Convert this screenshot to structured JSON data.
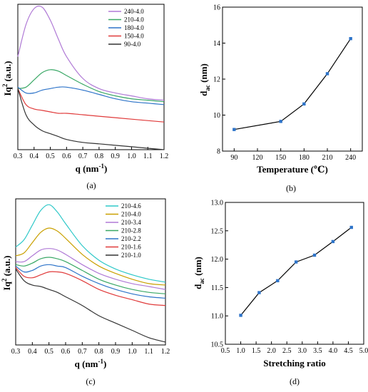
{
  "captions": [
    "(a)",
    "(b)",
    "(c)",
    "(d)"
  ],
  "chart_data": [
    {
      "panel": "a",
      "type": "line",
      "xlabel": "q (nm⁻¹)",
      "ylabel": "Iq² (a.u.)",
      "xlim": [
        0.3,
        1.2
      ],
      "xticks": [
        "0.3",
        "0.4",
        "0.5",
        "0.6",
        "0.7",
        "0.8",
        "0.9",
        "1.0",
        "1.1",
        "1.2"
      ],
      "ylim": [
        0,
        1
      ],
      "legend_position": "top-right",
      "x": [
        0.3,
        0.35,
        0.4,
        0.45,
        0.5,
        0.55,
        0.6,
        0.7,
        0.8,
        0.9,
        1.0,
        1.1,
        1.2
      ],
      "series": [
        {
          "name": "240-4.0",
          "color": "#b07ad6",
          "values": [
            0.64,
            0.86,
            0.97,
            0.98,
            0.89,
            0.76,
            0.64,
            0.49,
            0.42,
            0.39,
            0.37,
            0.35,
            0.34
          ]
        },
        {
          "name": "210-4.0",
          "color": "#3aa866",
          "values": [
            0.42,
            0.43,
            0.48,
            0.53,
            0.55,
            0.54,
            0.51,
            0.45,
            0.4,
            0.37,
            0.35,
            0.34,
            0.33
          ]
        },
        {
          "name": "180-4.0",
          "color": "#2e74c9",
          "values": [
            0.43,
            0.39,
            0.39,
            0.41,
            0.42,
            0.43,
            0.43,
            0.41,
            0.38,
            0.35,
            0.33,
            0.32,
            0.31
          ]
        },
        {
          "name": "150-4.0",
          "color": "#e03a3a",
          "values": [
            0.42,
            0.31,
            0.28,
            0.27,
            0.26,
            0.25,
            0.25,
            0.24,
            0.23,
            0.22,
            0.21,
            0.2,
            0.19
          ]
        },
        {
          "name": "90-4.0",
          "color": "#333333",
          "values": [
            0.42,
            0.24,
            0.17,
            0.13,
            0.11,
            0.09,
            0.07,
            0.05,
            0.04,
            0.03,
            0.02,
            0.01,
            0.0
          ]
        }
      ]
    },
    {
      "panel": "b",
      "type": "line",
      "xlabel": "Temperature (℃)",
      "ylabel": "d_ac (nm)",
      "xlim": [
        75,
        255
      ],
      "ylim": [
        8,
        16
      ],
      "xticks": [
        90,
        120,
        150,
        180,
        210,
        240
      ],
      "yticks": [
        8,
        10,
        12,
        14,
        16
      ],
      "x": [
        90,
        150,
        180,
        210,
        240
      ],
      "values": [
        9.2,
        9.65,
        10.62,
        12.3,
        14.25
      ]
    },
    {
      "panel": "c",
      "type": "line",
      "xlabel": "q (nm⁻¹)",
      "ylabel": "Iq² (a.u.)",
      "xlim": [
        0.3,
        1.2
      ],
      "xticks": [
        "0.3",
        "0.4",
        "0.5",
        "0.6",
        "0.7",
        "0.8",
        "0.9",
        "1.0",
        "1.1",
        "1.2"
      ],
      "ylim": [
        0,
        1
      ],
      "legend_position": "top-right",
      "x": [
        0.3,
        0.35,
        0.4,
        0.45,
        0.5,
        0.55,
        0.6,
        0.7,
        0.8,
        0.9,
        1.0,
        1.1,
        1.2
      ],
      "series": [
        {
          "name": "210-4.6",
          "color": "#2ec8c8",
          "values": [
            0.67,
            0.72,
            0.82,
            0.92,
            0.96,
            0.91,
            0.83,
            0.68,
            0.58,
            0.52,
            0.48,
            0.45,
            0.43
          ]
        },
        {
          "name": "210-4.0",
          "color": "#c9a000",
          "values": [
            0.61,
            0.63,
            0.7,
            0.77,
            0.8,
            0.78,
            0.73,
            0.62,
            0.54,
            0.49,
            0.45,
            0.42,
            0.41
          ]
        },
        {
          "name": "210-3.4",
          "color": "#b07ad6",
          "values": [
            0.57,
            0.57,
            0.61,
            0.65,
            0.66,
            0.65,
            0.62,
            0.55,
            0.49,
            0.45,
            0.42,
            0.4,
            0.38
          ]
        },
        {
          "name": "210-2.8",
          "color": "#3aa866",
          "values": [
            0.55,
            0.54,
            0.56,
            0.59,
            0.6,
            0.59,
            0.57,
            0.51,
            0.45,
            0.41,
            0.38,
            0.36,
            0.35
          ]
        },
        {
          "name": "210-2.2",
          "color": "#2e74c9",
          "values": [
            0.54,
            0.5,
            0.51,
            0.54,
            0.55,
            0.54,
            0.53,
            0.47,
            0.42,
            0.38,
            0.35,
            0.33,
            0.32
          ]
        },
        {
          "name": "210-1.6",
          "color": "#e03a3a",
          "values": [
            0.53,
            0.47,
            0.46,
            0.48,
            0.5,
            0.5,
            0.49,
            0.44,
            0.38,
            0.34,
            0.31,
            0.28,
            0.27
          ]
        },
        {
          "name": "210-1.0",
          "color": "#333333",
          "values": [
            0.52,
            0.44,
            0.41,
            0.4,
            0.38,
            0.36,
            0.33,
            0.27,
            0.2,
            0.15,
            0.1,
            0.05,
            0.02
          ]
        }
      ]
    },
    {
      "panel": "d",
      "type": "line",
      "xlabel": "Stretching ratio",
      "ylabel": "d_ac (nm)",
      "xlim": [
        0.5,
        5.0
      ],
      "ylim": [
        10.5,
        13.0
      ],
      "xticks": [
        "0.5",
        "1.0",
        "1.5",
        "2.0",
        "2.5",
        "3.0",
        "3.5",
        "4.0",
        "4.5",
        "5.0"
      ],
      "yticks": [
        "10.5",
        "11.0",
        "11.5",
        "12.0",
        "12.5",
        "13.0"
      ],
      "x": [
        1.0,
        1.6,
        2.2,
        2.8,
        3.4,
        4.0,
        4.6
      ],
      "values": [
        11.01,
        11.41,
        11.62,
        11.95,
        12.07,
        12.31,
        12.56
      ]
    }
  ]
}
